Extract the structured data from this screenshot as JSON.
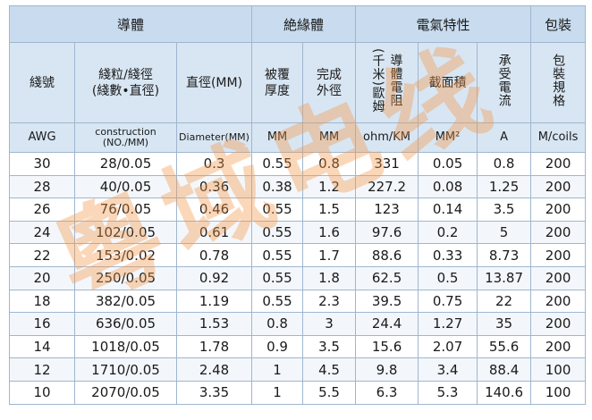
{
  "headers": {
    "groups": [
      "導體",
      "絶緣體",
      "電氣特性",
      "包裝"
    ],
    "main": {
      "awg": "綫號",
      "construction": [
        "綫粒/綫徑",
        "(綫數•直徑)"
      ],
      "diameter": "直徑(MM)",
      "insulation": [
        "被覆",
        "厚度"
      ],
      "outer": [
        "完成",
        "外徑"
      ],
      "resistance": [
        "導體電阻",
        "(千米)歐姆"
      ],
      "area": "截面積",
      "current": "承受電流",
      "packing": "包裝規格"
    },
    "sub": {
      "awg": "AWG",
      "construction": [
        "construction",
        "(NO./MM)"
      ],
      "diameter": "Diameter(MM)",
      "insulation": "MM",
      "outer": "MM",
      "resistance": "ohm/KM",
      "area": "MM²",
      "current": "A",
      "packing": "M/coils"
    }
  },
  "rows": [
    [
      "30",
      "28/0.05",
      "0.3",
      "0.55",
      "0.8",
      "331",
      "0.05",
      "0.8",
      "200"
    ],
    [
      "28",
      "40/0.05",
      "0.36",
      "0.38",
      "1.2",
      "227.2",
      "0.08",
      "1.25",
      "200"
    ],
    [
      "26",
      "76/0.05",
      "0.46",
      "0.55",
      "1.5",
      "123",
      "0.14",
      "3.5",
      "200"
    ],
    [
      "24",
      "102/0.05",
      "0.61",
      "0.55",
      "1.6",
      "97.6",
      "0.2",
      "5",
      "200"
    ],
    [
      "22",
      "153/0.02",
      "0.78",
      "0.55",
      "1.7",
      "88.6",
      "0.33",
      "8.73",
      "200"
    ],
    [
      "20",
      "250/0.05",
      "0.92",
      "0.55",
      "1.8",
      "62.5",
      "0.5",
      "13.87",
      "200"
    ],
    [
      "18",
      "382/0.05",
      "1.19",
      "0.55",
      "2.3",
      "39.5",
      "0.75",
      "22",
      "200"
    ],
    [
      "16",
      "636/0.05",
      "1.53",
      "0.8",
      "3",
      "24.4",
      "1.27",
      "35",
      "200"
    ],
    [
      "14",
      "1018/0.05",
      "1.78",
      "0.9",
      "3.5",
      "15.6",
      "2.07",
      "55.6",
      "200"
    ],
    [
      "12",
      "1710/0.05",
      "2.48",
      "1",
      "4.5",
      "9.8",
      "3.4",
      "88.4",
      "100"
    ],
    [
      "10",
      "2070/0.05",
      "3.35",
      "1",
      "5.5",
      "6.3",
      "5.3",
      "140.6",
      "100"
    ]
  ],
  "watermark": "粵域电线",
  "colors": {
    "header_dark": "#c9dcef",
    "header_light": "#d8e6f3",
    "border": "#9fb6cf",
    "watermark": "#f49646"
  }
}
